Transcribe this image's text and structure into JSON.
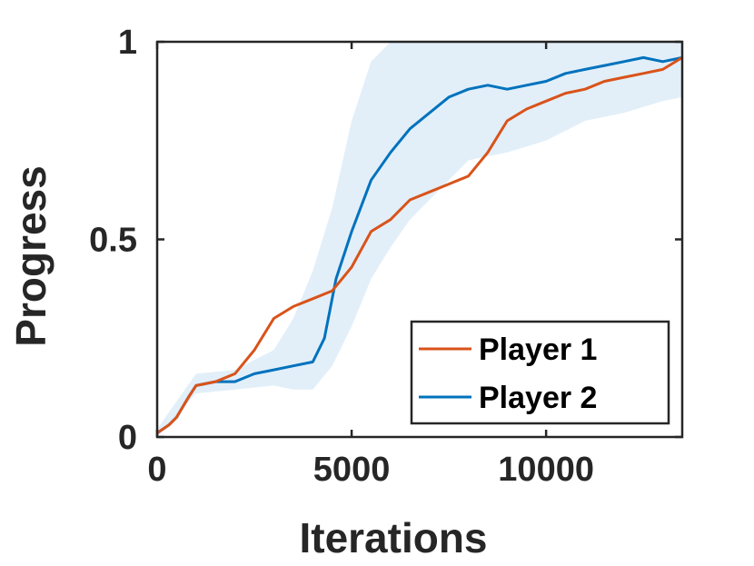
{
  "chart_data": {
    "type": "line",
    "title": "",
    "xlabel": "Iterations",
    "ylabel": "Progress",
    "xlim": [
      0,
      13500
    ],
    "ylim": [
      0,
      1
    ],
    "xticks": [
      0,
      5000,
      10000
    ],
    "xtick_labels": [
      "0",
      "5000",
      "10000"
    ],
    "yticks": [
      0,
      0.5,
      1
    ],
    "ytick_labels": [
      "0",
      "0.5",
      "1"
    ],
    "grid": false,
    "legend_position": "bottom-right",
    "colors": {
      "player1": "#D95319",
      "player2": "#0072BD",
      "band": "#D6E8F7"
    },
    "series": [
      {
        "name": "Player 1",
        "color": "#D95319",
        "x": [
          0,
          300,
          500,
          800,
          1000,
          1500,
          2000,
          2500,
          3000,
          3500,
          4000,
          4500,
          5000,
          5500,
          6000,
          6500,
          7000,
          7500,
          8000,
          8500,
          9000,
          9500,
          10000,
          10500,
          11000,
          11500,
          12000,
          12500,
          13000,
          13500
        ],
        "y": [
          0.01,
          0.03,
          0.05,
          0.1,
          0.13,
          0.14,
          0.16,
          0.22,
          0.3,
          0.33,
          0.35,
          0.37,
          0.43,
          0.52,
          0.55,
          0.6,
          0.62,
          0.64,
          0.66,
          0.72,
          0.8,
          0.83,
          0.85,
          0.87,
          0.88,
          0.9,
          0.91,
          0.92,
          0.93,
          0.96
        ]
      },
      {
        "name": "Player 2",
        "color": "#0072BD",
        "x": [
          0,
          300,
          500,
          800,
          1000,
          1500,
          2000,
          2500,
          3000,
          3500,
          4000,
          4300,
          4600,
          5000,
          5500,
          6000,
          6500,
          7000,
          7500,
          8000,
          8500,
          9000,
          9500,
          10000,
          10500,
          11000,
          11500,
          12000,
          12500,
          13000,
          13500
        ],
        "y": [
          0.01,
          0.03,
          0.05,
          0.1,
          0.13,
          0.14,
          0.14,
          0.16,
          0.17,
          0.18,
          0.19,
          0.25,
          0.4,
          0.52,
          0.65,
          0.72,
          0.78,
          0.82,
          0.86,
          0.88,
          0.89,
          0.88,
          0.89,
          0.9,
          0.92,
          0.93,
          0.94,
          0.95,
          0.96,
          0.95,
          0.96
        ]
      }
    ],
    "bands": [
      {
        "series": "Player 2",
        "x": [
          0,
          1000,
          2000,
          3000,
          3500,
          4000,
          4500,
          5000,
          5500,
          6000,
          6500,
          7000,
          7500,
          8000,
          9000,
          10000,
          11000,
          12000,
          13000,
          13500
        ],
        "upper": [
          0.02,
          0.16,
          0.17,
          0.22,
          0.3,
          0.42,
          0.58,
          0.8,
          0.95,
          1.0,
          1.0,
          1.0,
          1.0,
          1.0,
          1.0,
          1.0,
          1.0,
          1.0,
          1.0,
          1.0
        ],
        "lower": [
          0.0,
          0.11,
          0.12,
          0.13,
          0.12,
          0.12,
          0.18,
          0.28,
          0.4,
          0.48,
          0.55,
          0.6,
          0.65,
          0.7,
          0.72,
          0.75,
          0.8,
          0.82,
          0.85,
          0.86
        ]
      }
    ]
  }
}
